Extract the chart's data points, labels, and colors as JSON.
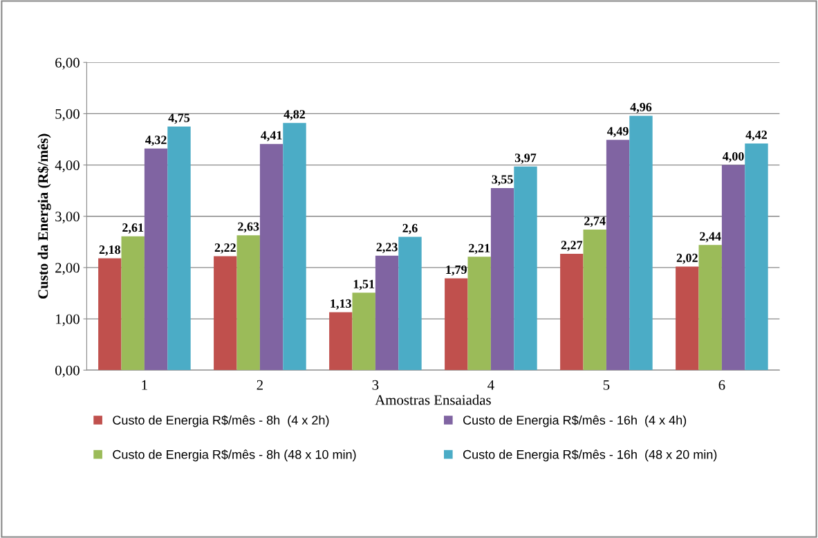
{
  "chart_data": {
    "type": "bar",
    "xlabel": "Amostras Ensaiadas",
    "ylabel": "Custo da Energia (R$/mês)",
    "categories": [
      "1",
      "2",
      "3",
      "4",
      "5",
      "6"
    ],
    "series": [
      {
        "name": "Custo de Energia R$/mês - 8h  (4 x 2h)",
        "color": "#c0504d",
        "values": [
          2.18,
          2.22,
          1.13,
          1.79,
          2.27,
          2.02
        ],
        "value_labels": [
          "2,18",
          "2,22",
          "1,13",
          "1,79",
          "2,27",
          "2,02"
        ]
      },
      {
        "name": "Custo de Energia R$/mês - 8h (48 x 10 min)",
        "color": "#9bbb59",
        "values": [
          2.61,
          2.63,
          1.51,
          2.21,
          2.74,
          2.44
        ],
        "value_labels": [
          "2,61",
          "2,63",
          "1,51",
          "2,21",
          "2,74",
          "2,44"
        ]
      },
      {
        "name": "Custo de Energia R$/mês - 16h  (4 x 4h)",
        "color": "#8064a2",
        "values": [
          4.32,
          4.41,
          2.23,
          3.55,
          4.49,
          4.0
        ],
        "value_labels": [
          "4,32",
          "4,41",
          "2,23",
          "3,55",
          "4,49",
          "4,00"
        ]
      },
      {
        "name": "Custo de Energia R$/mês - 16h  (48 x 20 min)",
        "color": "#4bacc6",
        "values": [
          4.75,
          4.82,
          2.6,
          3.97,
          4.96,
          4.42
        ],
        "value_labels": [
          "4,75",
          "4,82",
          "2,6",
          "3,97",
          "4,96",
          "4,42"
        ]
      }
    ],
    "ylim": [
      0,
      6
    ],
    "yticks": [
      {
        "value": 0,
        "label": "0,00"
      },
      {
        "value": 1,
        "label": "1,00"
      },
      {
        "value": 2,
        "label": "2,00"
      },
      {
        "value": 3,
        "label": "3,00"
      },
      {
        "value": 4,
        "label": "4,00"
      },
      {
        "value": 5,
        "label": "5,00"
      },
      {
        "value": 6,
        "label": "6,00"
      }
    ],
    "grid": "y",
    "legend": "bottom"
  }
}
